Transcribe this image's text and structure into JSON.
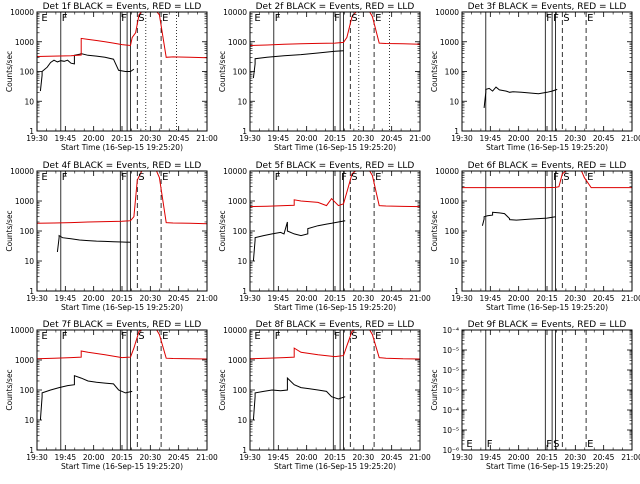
{
  "figure": {
    "xticks": [
      "19:30",
      "19:45",
      "20:00",
      "20:15",
      "20:30",
      "20:45",
      "21:00"
    ],
    "xlabel": "Start Time (16-Sep-15 19:25:20)",
    "ylabel": "Counts/sec",
    "legend_colors": {
      "events": "#000000",
      "lld": "#dd0000"
    }
  },
  "chart_data": [
    {
      "type": "line",
      "title": "Det 1f BLACK = Events, RED = LLD",
      "xlim": [
        0,
        100
      ],
      "ylim": [
        1,
        10000
      ],
      "yscale": "log",
      "yticklabels": [
        "1",
        "10",
        "100",
        "1000",
        "10000"
      ],
      "markers": [
        {
          "label": "E",
          "x": 2
        },
        {
          "label": "F",
          "x": 14
        },
        {
          "label": "F",
          "x": 49
        },
        {
          "label": "S",
          "x": 59
        },
        {
          "label": "E",
          "x": 73
        }
      ],
      "solid_lines": [
        14,
        49,
        53,
        55
      ],
      "dashed_lines": [
        59,
        73
      ],
      "dotted_lines": [
        64,
        82
      ],
      "series": [
        {
          "name": "",
          "color": "#000000",
          "x": [
            2,
            3,
            3,
            6,
            8,
            10,
            12,
            14,
            16,
            18,
            20,
            22,
            22,
            25,
            26,
            30,
            35,
            40,
            45,
            48,
            52,
            55,
            57
          ],
          "y": [
            22,
            75,
            100,
            140,
            200,
            240,
            210,
            230,
            220,
            240,
            190,
            180,
            350,
            380,
            400,
            350,
            330,
            300,
            260,
            110,
            100,
            100,
            120
          ]
        },
        {
          "name": "",
          "color": "#dd0000",
          "x": [
            0,
            10,
            20,
            26,
            26,
            30,
            35,
            40,
            45,
            50,
            55,
            56,
            58,
            60,
            62,
            70,
            72,
            76,
            80,
            90,
            100
          ],
          "y": [
            320,
            330,
            340,
            360,
            1300,
            1200,
            1100,
            1000,
            900,
            800,
            750,
            1400,
            2000,
            8000,
            11000,
            11000,
            8000,
            300,
            310,
            300,
            290
          ]
        }
      ]
    },
    {
      "type": "line",
      "title": "Det 2f BLACK = Events, RED = LLD",
      "xlim": [
        0,
        100
      ],
      "ylim": [
        1,
        10000
      ],
      "yscale": "log",
      "yticklabels": [
        "1",
        "10",
        "100",
        "1000",
        "10000"
      ],
      "markers": [
        {
          "label": "E",
          "x": 2
        },
        {
          "label": "F",
          "x": 14
        },
        {
          "label": "F",
          "x": 49
        },
        {
          "label": "S",
          "x": 59
        },
        {
          "label": "E",
          "x": 73
        }
      ],
      "solid_lines": [
        14,
        49,
        53,
        55
      ],
      "dashed_lines": [
        59,
        73
      ],
      "dotted_lines": [
        64,
        82
      ],
      "series": [
        {
          "name": "",
          "color": "#000000",
          "x": [
            2,
            3,
            3,
            10,
            20,
            30,
            40,
            45,
            50,
            55
          ],
          "y": [
            60,
            180,
            270,
            300,
            340,
            370,
            420,
            450,
            480,
            500
          ]
        },
        {
          "name": "",
          "color": "#dd0000",
          "x": [
            0,
            10,
            20,
            30,
            40,
            50,
            55,
            57,
            60,
            63,
            70,
            72,
            76,
            80,
            90,
            100
          ],
          "y": [
            750,
            780,
            820,
            850,
            880,
            900,
            950,
            1400,
            7000,
            11000,
            11000,
            7000,
            900,
            870,
            850,
            830
          ]
        }
      ]
    },
    {
      "type": "line",
      "title": "Det 3f BLACK = Events, RED = LLD",
      "xlim": [
        0,
        100
      ],
      "ylim": [
        1,
        10000
      ],
      "yscale": "log",
      "yticklabels": [
        "1",
        "10",
        "100",
        "1000",
        "10000"
      ],
      "markers": [
        {
          "label": "F",
          "x": 49
        },
        {
          "label": "F",
          "x": 53
        },
        {
          "label": "S",
          "x": 59
        },
        {
          "label": "E",
          "x": 73
        }
      ],
      "solid_lines": [
        14,
        49,
        53,
        55
      ],
      "dashed_lines": [
        59,
        73
      ],
      "dotted_lines": [],
      "series": [
        {
          "name": "",
          "color": "#000000",
          "x": [
            13,
            14,
            14,
            16,
            18,
            20,
            22,
            24,
            26,
            28,
            30,
            35,
            40,
            45,
            50,
            53,
            56
          ],
          "y": [
            6,
            20,
            25,
            27,
            22,
            30,
            24,
            23,
            22,
            20,
            21,
            20,
            19,
            18,
            20,
            22,
            25
          ]
        }
      ]
    },
    {
      "type": "line",
      "title": "Det 4f BLACK = Events, RED = LLD",
      "xlim": [
        0,
        100
      ],
      "ylim": [
        1,
        10000
      ],
      "yscale": "log",
      "yticklabels": [
        "1",
        "10",
        "100",
        "1000",
        "10000"
      ],
      "markers": [
        {
          "label": "E",
          "x": 2
        },
        {
          "label": "F",
          "x": 14
        },
        {
          "label": "F",
          "x": 49
        },
        {
          "label": "S",
          "x": 59
        },
        {
          "label": "E",
          "x": 73
        }
      ],
      "solid_lines": [
        14,
        49,
        53,
        55
      ],
      "dashed_lines": [
        59,
        73
      ],
      "dotted_lines": [],
      "series": [
        {
          "name": "",
          "color": "#000000",
          "x": [
            12,
            13,
            13,
            15,
            20,
            25,
            30,
            35,
            40,
            45,
            50,
            55
          ],
          "y": [
            20,
            60,
            70,
            60,
            55,
            50,
            48,
            46,
            45,
            44,
            43,
            42
          ]
        },
        {
          "name": "",
          "color": "#dd0000",
          "x": [
            0,
            10,
            20,
            30,
            40,
            50,
            55,
            57,
            59,
            62,
            70,
            72,
            76,
            80,
            90,
            100
          ],
          "y": [
            180,
            185,
            190,
            200,
            205,
            210,
            220,
            300,
            5000,
            11000,
            11000,
            6000,
            190,
            185,
            180,
            175
          ]
        }
      ]
    },
    {
      "type": "line",
      "title": "Det 5f BLACK = Events, RED = LLD",
      "xlim": [
        0,
        100
      ],
      "ylim": [
        1,
        10000
      ],
      "yscale": "log",
      "yticklabels": [
        "1",
        "10",
        "100",
        "1000",
        "10000"
      ],
      "markers": [
        {
          "label": "F",
          "x": 14
        },
        {
          "label": "F",
          "x": 53
        },
        {
          "label": "S",
          "x": 59
        },
        {
          "label": "E",
          "x": 73
        }
      ],
      "solid_lines": [
        14,
        49,
        53,
        55
      ],
      "dashed_lines": [
        59,
        73
      ],
      "dotted_lines": [],
      "series": [
        {
          "name": "",
          "color": "#000000",
          "x": [
            2,
            3,
            3,
            8,
            13,
            18,
            20,
            22,
            22,
            26,
            30,
            34,
            34,
            40,
            45,
            48,
            52,
            56
          ],
          "y": [
            10,
            50,
            60,
            70,
            80,
            90,
            80,
            200,
            100,
            80,
            70,
            80,
            120,
            150,
            170,
            180,
            200,
            220
          ]
        },
        {
          "name": "",
          "color": "#dd0000",
          "x": [
            0,
            10,
            20,
            26,
            26,
            30,
            40,
            45,
            48,
            52,
            55,
            57,
            60,
            63,
            70,
            72,
            76,
            80,
            90,
            100
          ],
          "y": [
            650,
            670,
            700,
            720,
            1100,
            1000,
            900,
            700,
            1200,
            700,
            800,
            2000,
            8000,
            11000,
            11000,
            7000,
            700,
            680,
            660,
            650
          ]
        }
      ]
    },
    {
      "type": "line",
      "title": "Det 6f BLACK = Events, RED = LLD",
      "xlim": [
        0,
        100
      ],
      "ylim": [
        1,
        10000
      ],
      "yscale": "log",
      "yticklabels": [
        "1",
        "10",
        "100",
        "1000",
        "10000"
      ],
      "markers": [
        {
          "label": "F",
          "x": 53
        },
        {
          "label": "S",
          "x": 59
        },
        {
          "label": "E",
          "x": 73
        }
      ],
      "solid_lines": [
        14,
        49,
        53,
        55
      ],
      "dashed_lines": [
        59,
        73
      ],
      "dotted_lines": [],
      "series": [
        {
          "name": "",
          "color": "#000000",
          "x": [
            12,
            13,
            13,
            15,
            18,
            18,
            22,
            25,
            28,
            28,
            32,
            36,
            40,
            45,
            50,
            55
          ],
          "y": [
            150,
            250,
            300,
            320,
            340,
            420,
            400,
            380,
            260,
            240,
            230,
            240,
            250,
            260,
            270,
            300
          ]
        },
        {
          "name": "",
          "color": "#dd0000",
          "x": [
            0,
            20,
            40,
            50,
            55,
            57,
            59,
            62,
            70,
            72,
            76,
            80,
            90,
            100
          ],
          "y": [
            2800,
            2800,
            2800,
            2800,
            2850,
            3000,
            8000,
            11000,
            11000,
            6000,
            2800,
            2800,
            2800,
            2800
          ]
        }
      ]
    },
    {
      "type": "line",
      "title": "Det 7f BLACK = Events, RED = LLD",
      "xlim": [
        0,
        100
      ],
      "ylim": [
        1,
        10000
      ],
      "yscale": "log",
      "yticklabels": [
        "1",
        "10",
        "100",
        "1000",
        "10000"
      ],
      "markers": [
        {
          "label": "E",
          "x": 2
        },
        {
          "label": "F",
          "x": 14
        },
        {
          "label": "F",
          "x": 49
        },
        {
          "label": "S",
          "x": 59
        },
        {
          "label": "E",
          "x": 73
        }
      ],
      "solid_lines": [
        14,
        49,
        53,
        55
      ],
      "dashed_lines": [
        59,
        73
      ],
      "dotted_lines": [],
      "series": [
        {
          "name": "",
          "color": "#000000",
          "x": [
            2,
            3,
            3,
            8,
            13,
            18,
            22,
            22,
            26,
            30,
            35,
            40,
            45,
            48,
            52,
            56
          ],
          "y": [
            10,
            60,
            80,
            100,
            120,
            140,
            150,
            300,
            250,
            200,
            180,
            170,
            160,
            100,
            80,
            90
          ]
        },
        {
          "name": "",
          "color": "#dd0000",
          "x": [
            0,
            10,
            20,
            26,
            26,
            30,
            40,
            50,
            55,
            57,
            60,
            63,
            70,
            72,
            76,
            80,
            90,
            100
          ],
          "y": [
            1100,
            1150,
            1200,
            1250,
            2000,
            1800,
            1500,
            1200,
            1250,
            2500,
            9000,
            11000,
            11000,
            7000,
            1150,
            1120,
            1100,
            1080
          ]
        }
      ]
    },
    {
      "type": "line",
      "title": "Det 8f BLACK = Events, RED = LLD",
      "xlim": [
        0,
        100
      ],
      "ylim": [
        1,
        10000
      ],
      "yscale": "log",
      "yticklabels": [
        "1",
        "10",
        "100",
        "1000",
        "10000"
      ],
      "markers": [
        {
          "label": "E",
          "x": 2
        },
        {
          "label": "F",
          "x": 14
        },
        {
          "label": "F",
          "x": 49
        },
        {
          "label": "S",
          "x": 59
        },
        {
          "label": "E",
          "x": 73
        }
      ],
      "solid_lines": [
        14,
        49,
        53,
        55
      ],
      "dashed_lines": [
        59,
        73
      ],
      "dotted_lines": [],
      "series": [
        {
          "name": "",
          "color": "#000000",
          "x": [
            2,
            3,
            3,
            8,
            13,
            18,
            22,
            22,
            26,
            30,
            35,
            40,
            45,
            48,
            52,
            56
          ],
          "y": [
            10,
            60,
            80,
            90,
            100,
            95,
            100,
            250,
            150,
            120,
            110,
            100,
            90,
            60,
            50,
            60
          ]
        },
        {
          "name": "",
          "color": "#dd0000",
          "x": [
            0,
            10,
            20,
            26,
            26,
            30,
            40,
            50,
            55,
            57,
            60,
            63,
            70,
            72,
            76,
            80,
            90,
            100
          ],
          "y": [
            1100,
            1150,
            1200,
            1250,
            2500,
            1800,
            1500,
            1300,
            1400,
            3000,
            9000,
            11000,
            11000,
            7000,
            1200,
            1150,
            1100,
            1080
          ]
        }
      ]
    },
    {
      "type": "line",
      "title": "Det 9f BLACK = Events, RED = LLD",
      "xlim": [
        0,
        100
      ],
      "ylim": [
        1e-06,
        1e-05
      ],
      "yscale": "log",
      "yticklabels": [
        "10⁻⁶",
        "10⁻⁵",
        "10⁻⁴",
        "10⁻⁵",
        "10⁻⁵",
        "10⁻⁵",
        "10⁻⁴"
      ],
      "markers": [
        {
          "label": "E",
          "x": 2
        },
        {
          "label": "F",
          "x": 14
        },
        {
          "label": "F",
          "x": 49
        },
        {
          "label": "S",
          "x": 53
        },
        {
          "label": "E",
          "x": 73
        }
      ],
      "solid_lines": [
        14,
        49,
        53,
        55
      ],
      "dashed_lines": [
        59,
        73
      ],
      "dotted_lines": [],
      "series": []
    }
  ]
}
